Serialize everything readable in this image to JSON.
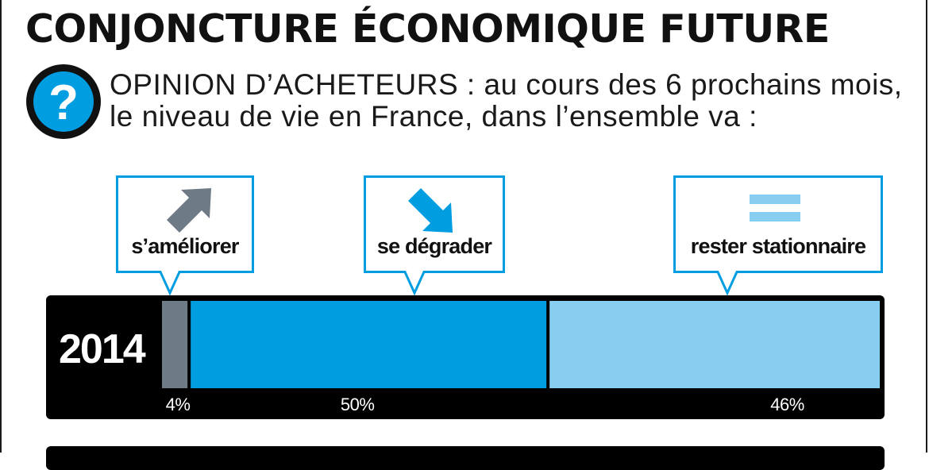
{
  "title": "CONJONCTURE ÉCONOMIQUE FUTURE",
  "subtitle": {
    "lead": "OPINION D’ACHETEURS",
    "text": " : au cours des 6 prochains mois, le niveau de vie en France, dans l’ensemble va :"
  },
  "callouts": [
    {
      "label": "s’améliorer",
      "icon": "arrow-up-right-icon"
    },
    {
      "label": "se dégrader",
      "icon": "arrow-down-right-icon"
    },
    {
      "label": "rester stationnaire",
      "icon": "equals-icon"
    }
  ],
  "colors": {
    "ameliorer": "#6e7b86",
    "degrader": "#009de0",
    "stationnaire": "#87cef0",
    "panel": "#000000"
  },
  "chart_data": {
    "type": "bar",
    "orientation": "horizontal-stacked",
    "categories": [
      "2014"
    ],
    "series": [
      {
        "name": "s’améliorer",
        "values": [
          4
        ],
        "label": "4%"
      },
      {
        "name": "se dégrader",
        "values": [
          50
        ],
        "label": "50%"
      },
      {
        "name": "rester stationnaire",
        "values": [
          46
        ],
        "label": "46%"
      }
    ],
    "unit": "%",
    "xlim": [
      0,
      100
    ]
  }
}
